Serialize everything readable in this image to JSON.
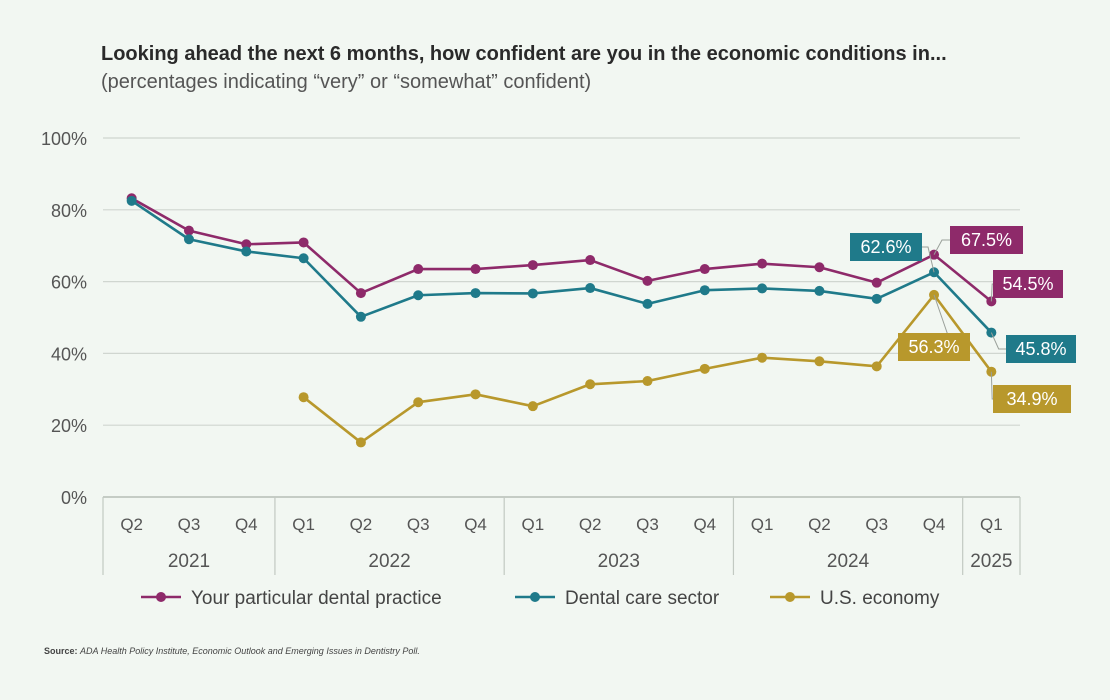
{
  "title": {
    "bold": "Looking ahead the next 6 months, how confident are you in the economic conditions in...",
    "subtitle": "(percentages indicating “very” or “somewhat” confident)"
  },
  "source": {
    "label": "Source:",
    "text": "ADA Health Policy Institute, Economic Outlook and Emerging Issues in Dentistry Poll."
  },
  "colors": {
    "practice": "#8e2a6a",
    "sector": "#1f7a8a",
    "economy": "#b8982c",
    "grid": "#d0d6d0",
    "axis_text": "#555555"
  },
  "chart_data": {
    "type": "line",
    "title": "Looking ahead the next 6 months, how confident are you in the economic conditions in...",
    "ylim": [
      0,
      100
    ],
    "yticks": [
      "0%",
      "20%",
      "40%",
      "60%",
      "80%",
      "100%"
    ],
    "ytick_values": [
      0,
      20,
      40,
      60,
      80,
      100
    ],
    "categories": [
      "Q2",
      "Q3",
      "Q4",
      "Q1",
      "Q2",
      "Q3",
      "Q4",
      "Q1",
      "Q2",
      "Q3",
      "Q4",
      "Q1",
      "Q2",
      "Q3",
      "Q4",
      "Q1"
    ],
    "year_groups": [
      {
        "year": "2021",
        "start": 0,
        "end": 2
      },
      {
        "year": "2022",
        "start": 3,
        "end": 6
      },
      {
        "year": "2023",
        "start": 7,
        "end": 10
      },
      {
        "year": "2024",
        "start": 11,
        "end": 14
      },
      {
        "year": "2025",
        "start": 15,
        "end": 15
      }
    ],
    "series": [
      {
        "name": "Your particular dental practice",
        "key": "practice",
        "values": [
          83.2,
          74.2,
          70.4,
          70.9,
          56.8,
          63.5,
          63.5,
          64.6,
          66.0,
          60.2,
          63.5,
          65.0,
          64.0,
          59.7,
          67.5,
          54.5
        ],
        "labels": [
          {
            "index": 14,
            "text": "67.5%"
          },
          {
            "index": 15,
            "text": "54.5%"
          }
        ]
      },
      {
        "name": "Dental care sector",
        "key": "sector",
        "values": [
          82.5,
          71.8,
          68.4,
          66.5,
          50.2,
          56.2,
          56.8,
          56.7,
          58.2,
          53.8,
          57.6,
          58.1,
          57.4,
          55.2,
          62.6,
          45.8
        ],
        "labels": [
          {
            "index": 14,
            "text": "62.6%"
          },
          {
            "index": 15,
            "text": "45.8%"
          }
        ]
      },
      {
        "name": "U.S. economy",
        "key": "economy",
        "values": [
          null,
          null,
          null,
          27.8,
          15.2,
          26.4,
          28.6,
          25.3,
          31.4,
          32.3,
          35.7,
          38.8,
          37.8,
          36.4,
          56.3,
          34.9
        ],
        "labels": [
          {
            "index": 14,
            "text": "56.3%"
          },
          {
            "index": 15,
            "text": "34.9%"
          }
        ]
      }
    ],
    "legend": [
      "Your particular dental practice",
      "Dental care sector",
      "U.S. economy"
    ],
    "legend_position": "bottom"
  }
}
